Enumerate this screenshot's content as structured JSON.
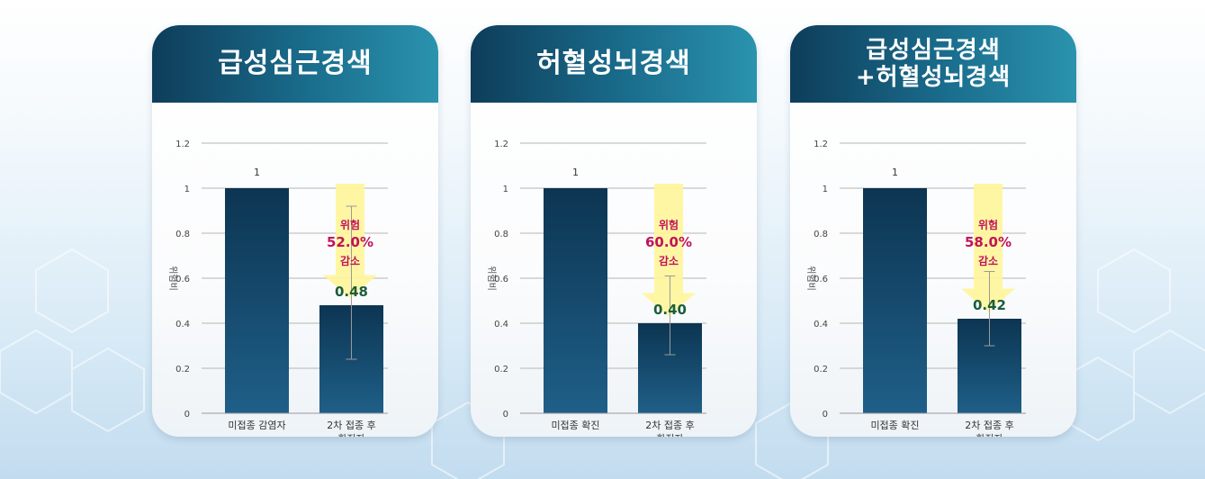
{
  "chart_data": [
    {
      "type": "bar",
      "title": [
        "급성심근경색"
      ],
      "ylabel": "위험비",
      "ylim": [
        0,
        1.2
      ],
      "yticks": [
        "0",
        "0.2",
        "0.4",
        "0.6",
        "0.8",
        "1",
        "1.2"
      ],
      "categories": [
        [
          "미접종 감염자"
        ],
        [
          "2차 접종 후",
          "확진자"
        ]
      ],
      "values": [
        1,
        0.48
      ],
      "value_labels": [
        "1",
        "0.48"
      ],
      "error_bars": [
        null,
        [
          0.24,
          0.92
        ]
      ],
      "annotation": [
        "위험",
        "52.0%",
        "감소"
      ]
    },
    {
      "type": "bar",
      "title": [
        "허혈성뇌경색"
      ],
      "ylabel": "위험비",
      "ylim": [
        0,
        1.2
      ],
      "yticks": [
        "0",
        "0.2",
        "0.4",
        "0.6",
        "0.8",
        "1",
        "1.2"
      ],
      "categories": [
        [
          "미접종 확진"
        ],
        [
          "2차 접종 후",
          "확진자"
        ]
      ],
      "values": [
        1,
        0.4
      ],
      "value_labels": [
        "1",
        "0.40"
      ],
      "error_bars": [
        null,
        [
          0.26,
          0.61
        ]
      ],
      "annotation": [
        "위험",
        "60.0%",
        "감소"
      ]
    },
    {
      "type": "bar",
      "title": [
        "급성심근경색",
        "+허혈성뇌경색"
      ],
      "ylabel": "위험비",
      "ylim": [
        0,
        1.2
      ],
      "yticks": [
        "0",
        "0.2",
        "0.4",
        "0.6",
        "0.8",
        "1",
        "1.2"
      ],
      "categories": [
        [
          "미접종 확진"
        ],
        [
          "2차 접종 후",
          "확진자"
        ]
      ],
      "values": [
        1,
        0.42
      ],
      "value_labels": [
        "1",
        "0.42"
      ],
      "error_bars": [
        null,
        [
          0.3,
          0.63
        ]
      ],
      "annotation": [
        "위험",
        "58.0%",
        "감소"
      ]
    }
  ],
  "colors": {
    "bar_top": "#0c3552",
    "bar_bottom": "#1f5f88",
    "accent": "#c0135a",
    "value_label": "#1b5e3b",
    "arrow": "#fff59a",
    "header_left": "#0e3d5a",
    "header_right": "#2a93ad"
  }
}
